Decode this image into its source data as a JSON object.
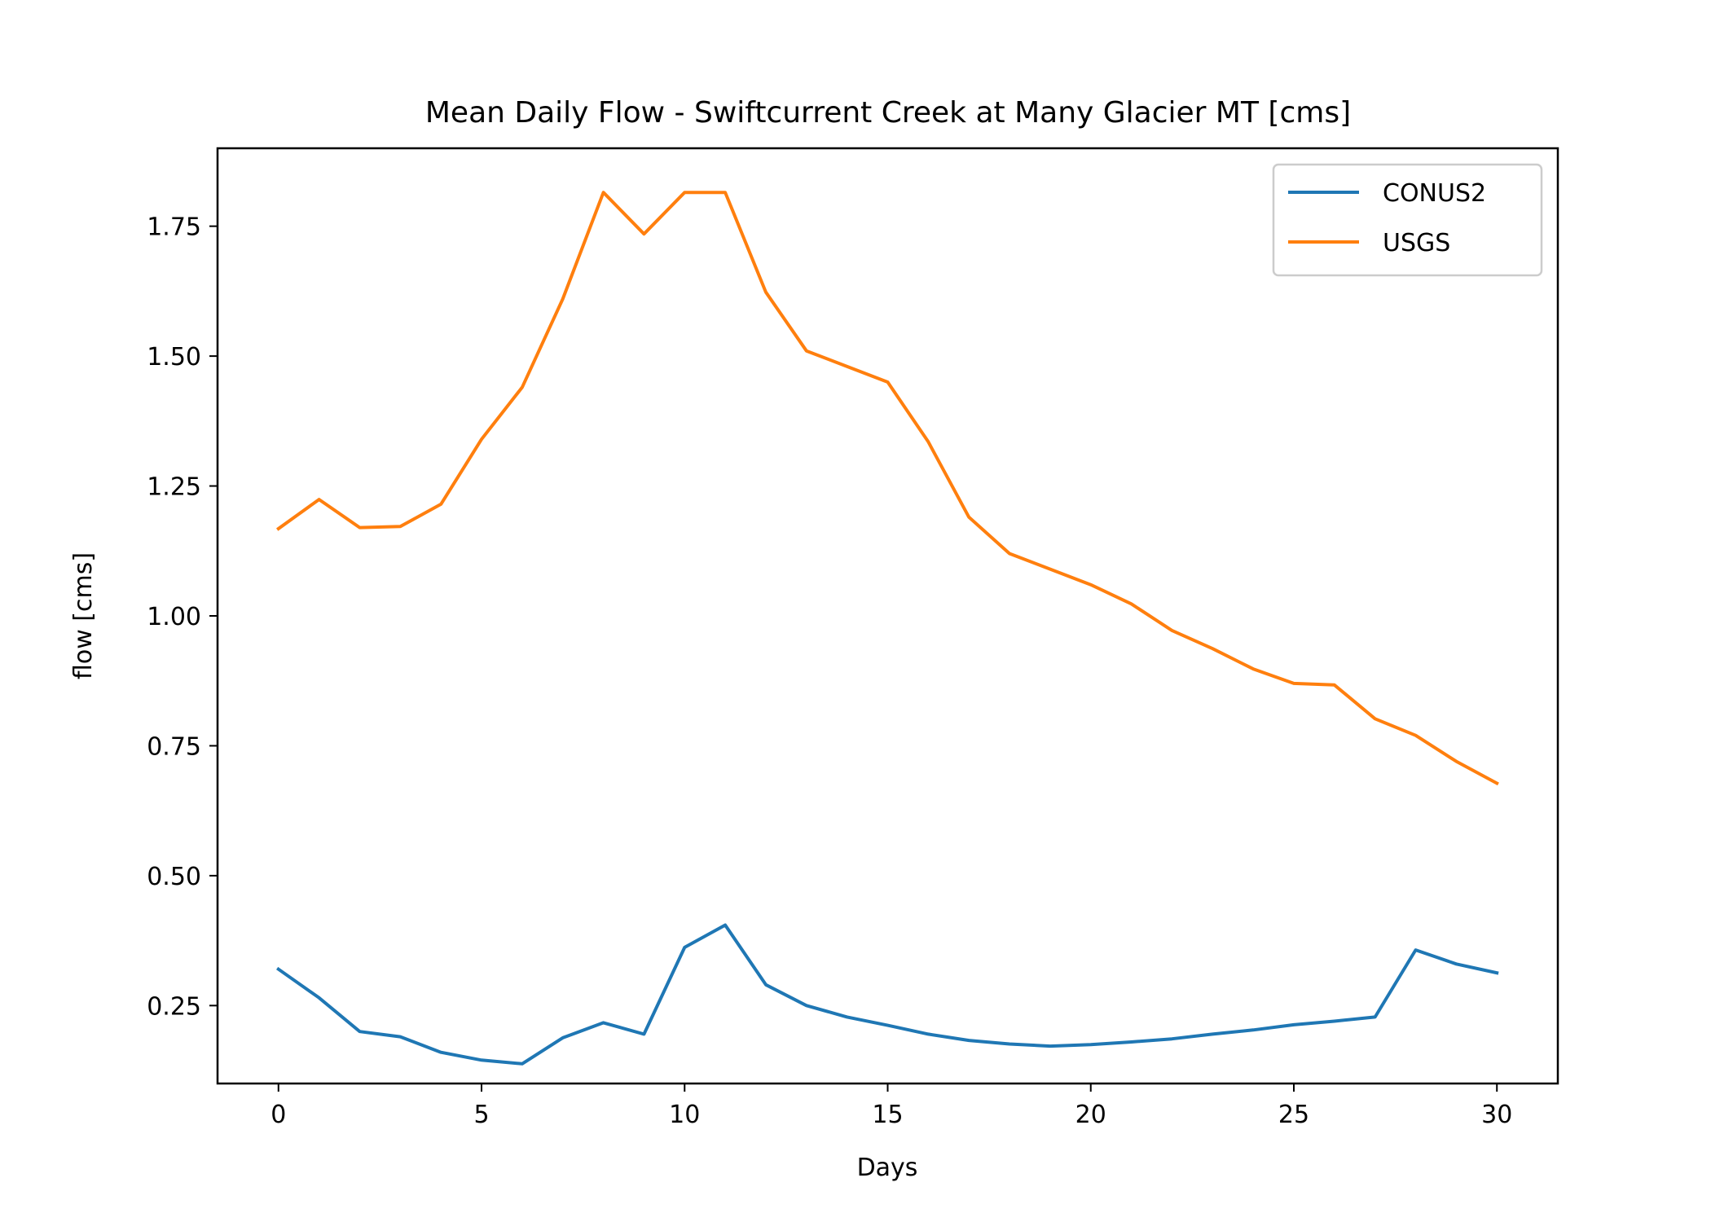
{
  "chart_data": {
    "type": "line",
    "title": "Mean Daily Flow - Swiftcurrent Creek at Many Glacier MT [cms]",
    "xlabel": "Days",
    "ylabel": "flow [cms]",
    "xlim": [
      -1.5,
      31.5
    ],
    "ylim": [
      0.1,
      1.9
    ],
    "xticks": [
      0,
      5,
      10,
      15,
      20,
      25,
      30
    ],
    "xtick_labels": [
      "0",
      "5",
      "10",
      "15",
      "20",
      "25",
      "30"
    ],
    "yticks": [
      0.25,
      0.5,
      0.75,
      1.0,
      1.25,
      1.5,
      1.75
    ],
    "ytick_labels": [
      "0.25",
      "0.50",
      "0.75",
      "1.00",
      "1.25",
      "1.50",
      "1.75"
    ],
    "grid": false,
    "legend_position": "upper right",
    "x": [
      0,
      1,
      2,
      3,
      4,
      5,
      6,
      7,
      8,
      9,
      10,
      11,
      12,
      13,
      14,
      15,
      16,
      17,
      18,
      19,
      20,
      21,
      22,
      23,
      24,
      25,
      26,
      27,
      28,
      29,
      30
    ],
    "series": [
      {
        "name": "CONUS2",
        "color": "#1f77b4",
        "values": [
          0.32,
          0.265,
          0.2,
          0.19,
          0.16,
          0.145,
          0.138,
          0.188,
          0.217,
          0.195,
          0.362,
          0.405,
          0.29,
          0.25,
          0.228,
          0.212,
          0.195,
          0.183,
          0.176,
          0.172,
          0.175,
          0.18,
          0.186,
          0.195,
          0.203,
          0.213,
          0.22,
          0.228,
          0.357,
          0.33,
          0.313
        ]
      },
      {
        "name": "USGS",
        "color": "#ff7f0e",
        "values": [
          1.168,
          1.224,
          1.17,
          1.172,
          1.215,
          1.34,
          1.44,
          1.61,
          1.815,
          1.735,
          1.815,
          1.815,
          1.623,
          1.51,
          1.48,
          1.45,
          1.335,
          1.19,
          1.12,
          1.09,
          1.06,
          1.023,
          0.972,
          0.937,
          0.898,
          0.87,
          0.867,
          0.802,
          0.77,
          0.72,
          0.678
        ]
      }
    ]
  }
}
